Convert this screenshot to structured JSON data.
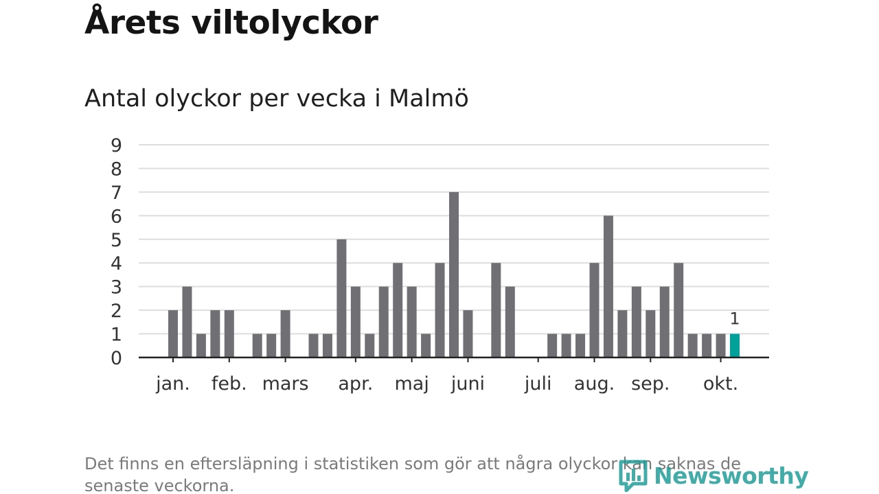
{
  "title": "Årets viltolyckor",
  "subtitle": "Antal olyckor per vecka i Malmö",
  "footnote": "Det finns en eftersläpning i statistiken som gör att några olyckor kan saknas de senaste veckorna.",
  "logo": {
    "text": "Newsworthy",
    "icon": "newsworthy-logo-icon"
  },
  "colors": {
    "bar": "#707074",
    "highlight": "#00a19a",
    "grid": "#dddddd",
    "axis": "#222222",
    "text": "#333333"
  },
  "chart_data": {
    "type": "bar",
    "x_unit": "week",
    "weeks": [
      1,
      2,
      3,
      4,
      5,
      6,
      7,
      8,
      9,
      10,
      11,
      12,
      13,
      14,
      15,
      16,
      17,
      18,
      19,
      20,
      21,
      22,
      23,
      24,
      25,
      26,
      27,
      28,
      29,
      30,
      31,
      32,
      33,
      34,
      35,
      36,
      37,
      38,
      39,
      40,
      41
    ],
    "values": [
      2,
      3,
      1,
      2,
      2,
      0,
      1,
      1,
      2,
      0,
      1,
      1,
      5,
      3,
      1,
      3,
      4,
      3,
      1,
      4,
      7,
      2,
      0,
      4,
      3,
      0,
      0,
      1,
      1,
      1,
      4,
      6,
      2,
      3,
      2,
      3,
      4,
      1,
      1,
      1,
      1
    ],
    "highlight_week": 41,
    "highlight_label": "1",
    "month_labels": [
      {
        "label": "jan.",
        "week": 1
      },
      {
        "label": "feb.",
        "week": 5
      },
      {
        "label": "mars",
        "week": 9
      },
      {
        "label": "apr.",
        "week": 14
      },
      {
        "label": "maj",
        "week": 18
      },
      {
        "label": "juni",
        "week": 22
      },
      {
        "label": "juli",
        "week": 27
      },
      {
        "label": "aug.",
        "week": 31
      },
      {
        "label": "sep.",
        "week": 35
      },
      {
        "label": "okt.",
        "week": 40
      }
    ],
    "y_ticks": [
      0,
      1,
      2,
      3,
      4,
      5,
      6,
      7,
      8,
      9
    ],
    "ylim": [
      0,
      9
    ],
    "grid": true
  }
}
